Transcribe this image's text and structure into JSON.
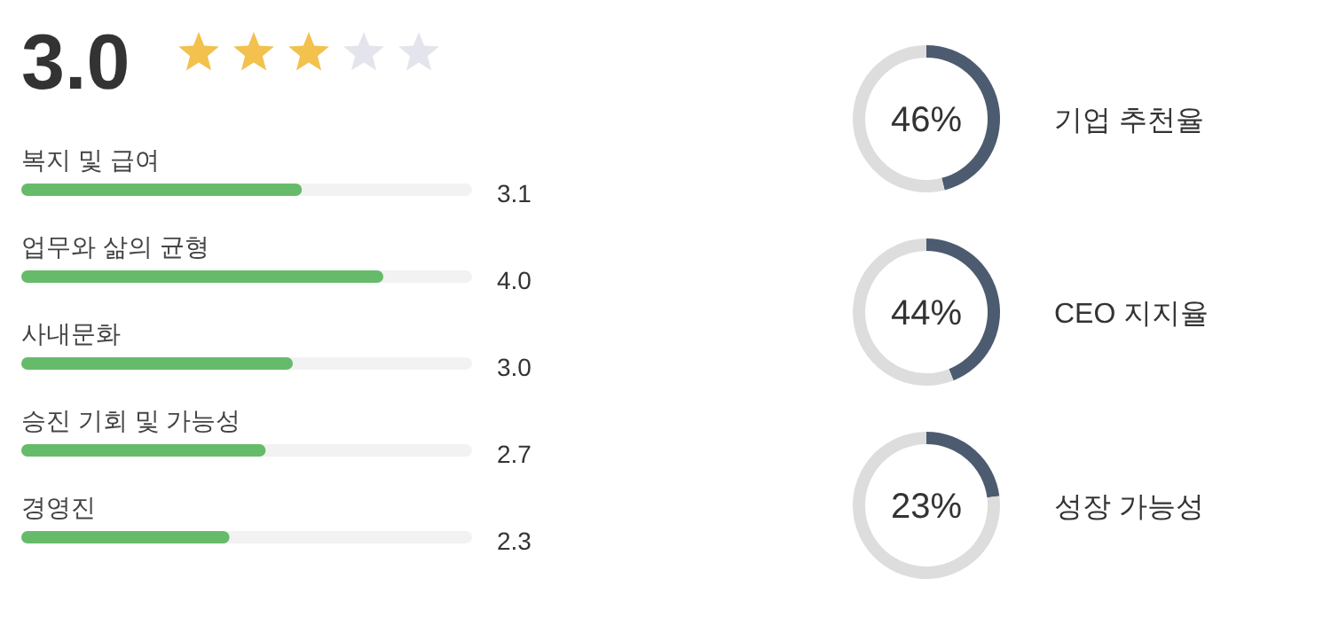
{
  "chart_data": [
    {
      "type": "other",
      "title": "3.0"
    },
    {
      "type": "bar",
      "orientation": "horizontal",
      "categories": [
        "복지 및 급여",
        "업무와 삶의 균형",
        "사내문화",
        "승진 기회 및 가능성",
        "경영진"
      ],
      "values": [
        3.1,
        4.0,
        3.0,
        2.7,
        2.3
      ],
      "value_labels": [
        "3.1",
        "4.0",
        "3.0",
        "2.7",
        "2.3"
      ],
      "color": "#66bb6a"
    },
    {
      "type": "donut",
      "title": "기업 추천율",
      "categories": [
        null,
        null
      ],
      "values": [
        46,
        54
      ],
      "colors": [
        "#4d5b70",
        "#dddddd"
      ],
      "annotations": [
        "46%"
      ]
    },
    {
      "type": "donut",
      "title": "CEO 지지율",
      "categories": [
        null,
        null
      ],
      "values": [
        44,
        56
      ],
      "colors": [
        "#4d5b70",
        "#dddddd"
      ],
      "annotations": [
        "44%"
      ]
    },
    {
      "type": "donut",
      "title": "성장 가능성",
      "categories": [
        null,
        null
      ],
      "values": [
        23,
        77
      ],
      "colors": [
        "#4d5b70",
        "#dddddd"
      ],
      "annotations": [
        "23%"
      ]
    }
  ]
}
